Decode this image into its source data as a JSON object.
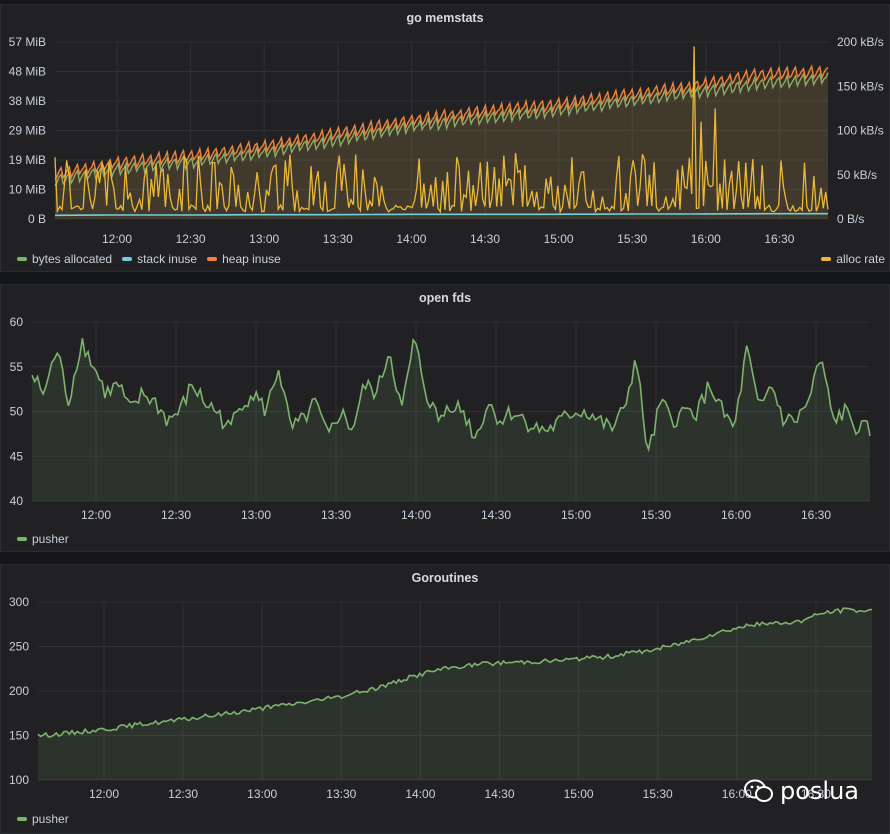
{
  "panels": [
    {
      "title": "go memstats",
      "legend_left": [
        {
          "label": "bytes allocated",
          "color": "#7eb26d"
        },
        {
          "label": "stack inuse",
          "color": "#6ed0e0"
        },
        {
          "label": "heap inuse",
          "color": "#ef843c"
        }
      ],
      "legend_right": [
        {
          "label": "alloc rate",
          "color": "#eab839"
        }
      ]
    },
    {
      "title": "open fds",
      "legend_left": [
        {
          "label": "pusher",
          "color": "#7eb26d"
        }
      ]
    },
    {
      "title": "Goroutines",
      "legend_left": [
        {
          "label": "pusher",
          "color": "#7eb26d"
        }
      ]
    }
  ],
  "watermark": {
    "text": "poslua"
  },
  "chart_data": [
    {
      "type": "line",
      "title": "go memstats",
      "x": [
        "11:35",
        "12:00",
        "12:30",
        "13:00",
        "13:30",
        "14:00",
        "14:30",
        "15:00",
        "15:30",
        "16:00",
        "16:30",
        "16:48"
      ],
      "xticks": [
        "12:00",
        "12:30",
        "13:00",
        "13:30",
        "14:00",
        "14:30",
        "15:00",
        "15:30",
        "16:00",
        "16:30"
      ],
      "y_left_ticks": [
        "0 B",
        "10 MiB",
        "19 MiB",
        "29 MiB",
        "38 MiB",
        "48 MiB",
        "57 MiB"
      ],
      "y_right_ticks": [
        "0 B/s",
        "50 kB/s",
        "100 kB/s",
        "150 kB/s",
        "200 kB/s"
      ],
      "ylim_left_mib": [
        0,
        57
      ],
      "ylim_right_kbs": [
        0,
        200
      ],
      "series": [
        {
          "name": "bytes allocated",
          "axis": "left",
          "color": "#7eb26d",
          "values": [
            12,
            16,
            18,
            21,
            25,
            29,
            32,
            34,
            37,
            40,
            43,
            45
          ]
        },
        {
          "name": "stack inuse",
          "axis": "left",
          "color": "#6ed0e0",
          "values": [
            1.2,
            1.3,
            1.3,
            1.4,
            1.4,
            1.5,
            1.5,
            1.5,
            1.6,
            1.6,
            1.7,
            1.7
          ]
        },
        {
          "name": "heap inuse",
          "axis": "left",
          "color": "#ef843c",
          "values": [
            14,
            18,
            20,
            23,
            27,
            31,
            34,
            36,
            39,
            42,
            46,
            47
          ]
        },
        {
          "name": "alloc rate",
          "axis": "right",
          "color": "#eab839",
          "values": [
            15,
            60,
            25,
            55,
            20,
            65,
            30,
            70,
            20,
            75,
            60,
            40
          ],
          "peak": 195
        }
      ]
    },
    {
      "type": "area",
      "title": "open fds",
      "xticks": [
        "12:00",
        "12:30",
        "13:00",
        "13:30",
        "14:00",
        "14:30",
        "15:00",
        "15:30",
        "16:00",
        "16:30"
      ],
      "yticks": [
        "40",
        "45",
        "50",
        "55",
        "60"
      ],
      "ylim": [
        40,
        60
      ],
      "series": [
        {
          "name": "pusher",
          "color": "#7eb26d",
          "values": [
            54,
            52,
            57,
            51,
            58,
            55,
            52,
            53,
            50,
            52,
            51,
            49,
            50,
            53,
            51,
            50,
            48,
            51,
            52,
            50,
            55,
            48,
            49,
            51,
            47,
            50,
            48,
            53,
            52,
            57,
            50,
            58,
            52,
            49,
            51,
            50,
            47,
            51,
            49,
            50,
            49,
            48,
            48,
            49,
            50,
            50,
            49,
            48,
            50,
            56,
            45,
            51,
            49,
            50,
            50,
            53,
            50,
            48,
            57,
            50,
            53,
            49,
            49,
            51,
            56,
            49,
            50,
            48,
            48
          ]
        }
      ]
    },
    {
      "type": "area",
      "title": "Goroutines",
      "xticks": [
        "12:00",
        "12:30",
        "13:00",
        "13:30",
        "14:00",
        "14:30",
        "15:00",
        "15:30",
        "16:00",
        "16:30"
      ],
      "yticks": [
        "100",
        "150",
        "200",
        "250",
        "300"
      ],
      "ylim": [
        100,
        300
      ],
      "series": [
        {
          "name": "pusher",
          "color": "#7eb26d",
          "values": [
            150,
            152,
            155,
            158,
            162,
            165,
            168,
            172,
            176,
            180,
            184,
            188,
            192,
            198,
            205,
            214,
            222,
            227,
            230,
            232,
            233,
            234,
            236,
            238,
            242,
            246,
            252,
            260,
            268,
            274,
            276,
            278,
            288,
            291,
            290
          ]
        }
      ]
    }
  ]
}
